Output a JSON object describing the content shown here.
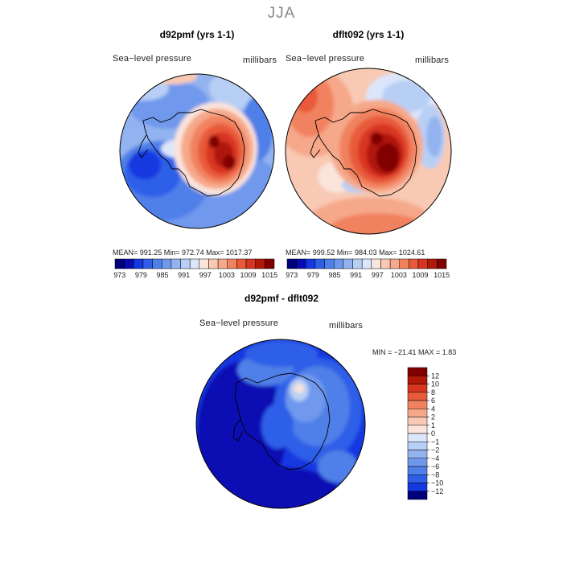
{
  "page": {
    "title": "JJA"
  },
  "palette": {
    "diverging": [
      "#00007a",
      "#0a0ab4",
      "#1438e0",
      "#2f5fe8",
      "#4f7fe8",
      "#6f98ec",
      "#93b3f0",
      "#b8cff5",
      "#dce6fb",
      "#fae4dc",
      "#f8c9b3",
      "#f6a88a",
      "#f1825f",
      "#e85a3a",
      "#d83520",
      "#b01808",
      "#800000"
    ]
  },
  "panels": [
    {
      "title": "d92pmf (yrs 1-1)",
      "variable": "Sea−level pressure",
      "units": "millibars",
      "stats": "MEAN= 991.25   Min= 972.74   Max= 1017.37"
    },
    {
      "title": "dflt092 (yrs 1-1)",
      "variable": "Sea−level pressure",
      "units": "millibars",
      "stats": "MEAN= 999.52   Min= 984.03   Max= 1024.61"
    },
    {
      "title": "d92pmf - dflt092",
      "variable": "Sea−level pressure",
      "units": "millibars",
      "stats": "MIN = −21.41 MAX =   1.83"
    }
  ],
  "chart_data": [
    {
      "type": "heatmap",
      "title": "d92pmf (yrs 1-1)",
      "quantity": "Sea-level pressure (millibars)",
      "projection": "south polar stereographic",
      "mean": 991.25,
      "min": 972.74,
      "max": 1017.37,
      "colorbar_ticks": [
        "973",
        "979",
        "985",
        "991",
        "997",
        "1003",
        "1009",
        "1015"
      ],
      "n_colors": 17
    },
    {
      "type": "heatmap",
      "title": "dflt092 (yrs 1-1)",
      "quantity": "Sea-level pressure (millibars)",
      "projection": "south polar stereographic",
      "mean": 999.52,
      "min": 984.03,
      "max": 1024.61,
      "colorbar_ticks": [
        "973",
        "979",
        "985",
        "991",
        "997",
        "1003",
        "1009",
        "1015"
      ],
      "n_colors": 17
    },
    {
      "type": "heatmap",
      "title": "d92pmf - dflt092",
      "quantity": "Sea-level pressure difference (millibars)",
      "projection": "south polar stereographic",
      "min": -21.41,
      "max": 1.83,
      "colorbar_levels": [
        12,
        10,
        8,
        6,
        4,
        2,
        1,
        0,
        -1,
        -2,
        -4,
        -6,
        -8,
        -10,
        -12
      ],
      "colorbar_tick_labels": [
        "12",
        "10",
        "8",
        "6",
        "4",
        "2",
        "1",
        "0",
        "−1",
        "−2",
        "−4",
        "−6",
        "−8",
        "−10",
        "−12"
      ],
      "colorbar_colors": [
        "#800000",
        "#b01808",
        "#d83520",
        "#e85a3a",
        "#f1825f",
        "#f6a88a",
        "#f8c9b3",
        "#fae4dc",
        "#dce6fb",
        "#b8cff5",
        "#93b3f0",
        "#6f98ec",
        "#4f7fe8",
        "#2f5fe8",
        "#1438e0",
        "#00007a"
      ]
    }
  ]
}
